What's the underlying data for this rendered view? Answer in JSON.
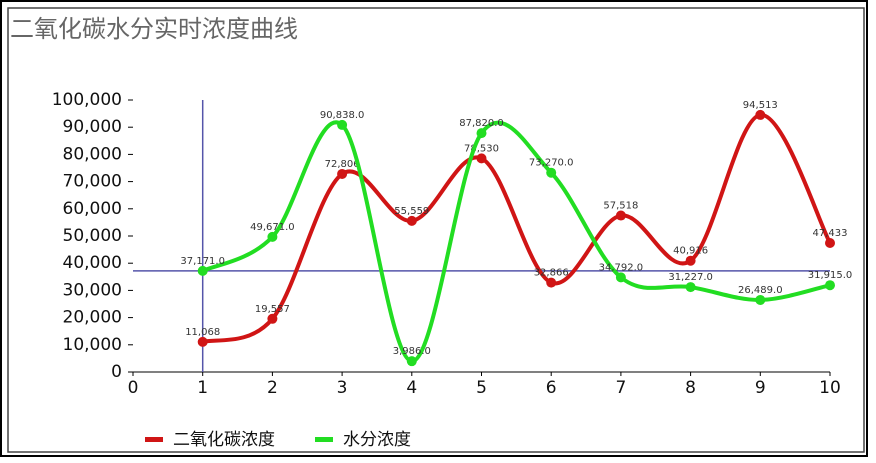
{
  "chart_data": {
    "type": "line",
    "title": "二氧化碳水分实时浓度曲线",
    "x": [
      1,
      2,
      3,
      4,
      5,
      6,
      7,
      8,
      9,
      10
    ],
    "xlim": [
      0,
      10
    ],
    "xticks": [
      0,
      1,
      2,
      3,
      4,
      5,
      6,
      7,
      8,
      9,
      10
    ],
    "ylim": [
      0,
      100000
    ],
    "yticks": [
      0,
      {
        "value": 10000,
        "label": "10,000"
      },
      {
        "value": 20000,
        "label": "20,000"
      },
      {
        "value": 30000,
        "label": "30,000"
      },
      {
        "value": 40000,
        "label": "40,000"
      },
      {
        "value": 50000,
        "label": "50,000"
      },
      {
        "value": 60000,
        "label": "60,000"
      },
      {
        "value": 70000,
        "label": "70,000"
      },
      {
        "value": 80000,
        "label": "80,000"
      },
      {
        "value": 90000,
        "label": "90,000"
      },
      {
        "value": 100000,
        "label": "100,000"
      }
    ],
    "crosshair": {
      "x": 1,
      "y": 37171
    },
    "series": [
      {
        "name": "二氧化碳浓度",
        "color": "#d01515",
        "values": [
          11068,
          19557,
          72806,
          55559,
          78530,
          32866,
          57518,
          40916,
          94513,
          47433
        ],
        "value_labels": [
          "11,068",
          "19,557",
          "72,806",
          "55,559",
          "78,530",
          "32,866",
          "57,518",
          "40,916",
          "94,513",
          "47,433"
        ]
      },
      {
        "name": "水分浓度",
        "color": "#22dd22",
        "values": [
          37171.0,
          49671.0,
          90838.0,
          3986.0,
          87820.0,
          73270.0,
          34792.0,
          31227.0,
          26489.0,
          31915.0
        ],
        "value_labels": [
          "37,171.0",
          "49,671.0",
          "90,838.0",
          "3,986.0",
          "87,820.0",
          "73,270.0",
          "34,792.0",
          "31,227.0",
          "26,489.0",
          "31,915.0"
        ]
      }
    ]
  }
}
